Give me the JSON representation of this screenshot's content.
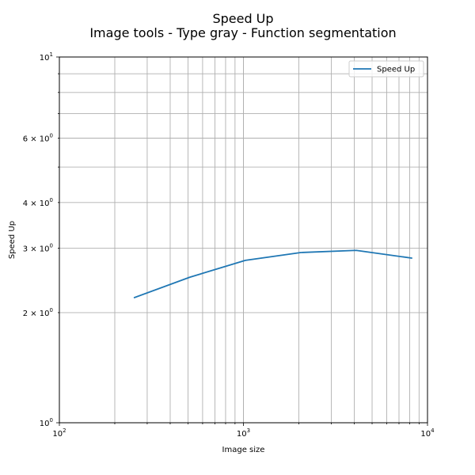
{
  "chart_data": {
    "type": "line",
    "title": "Speed Up",
    "subtitle": "Image tools - Type gray - Function segmentation",
    "xlabel": "Image size",
    "ylabel": "Speed Up",
    "x_scale": "log",
    "y_scale": "log",
    "xlim": [
      100,
      10000
    ],
    "ylim": [
      1,
      10
    ],
    "grid": true,
    "grid_which": "both",
    "legend_position": "top-right",
    "x_ticks": [
      {
        "value": 100,
        "base": "10",
        "exp": "2"
      },
      {
        "value": 1000,
        "base": "10",
        "exp": "3"
      },
      {
        "value": 10000,
        "base": "10",
        "exp": "4"
      }
    ],
    "y_ticks": [
      {
        "value": 1,
        "base": "10",
        "exp": "0"
      },
      {
        "value": 2,
        "base": "2 × 10",
        "exp": "0"
      },
      {
        "value": 3,
        "base": "3 × 10",
        "exp": "0"
      },
      {
        "value": 4,
        "base": "4 × 10",
        "exp": "0"
      },
      {
        "value": 6,
        "base": "6 × 10",
        "exp": "0"
      },
      {
        "value": 10,
        "base": "10",
        "exp": "1"
      }
    ],
    "series": [
      {
        "name": "Speed Up",
        "color": "#1f77b4",
        "x": [
          256,
          512,
          1024,
          2048,
          4096,
          8192
        ],
        "y": [
          2.2,
          2.5,
          2.78,
          2.92,
          2.96,
          2.82
        ]
      }
    ]
  }
}
